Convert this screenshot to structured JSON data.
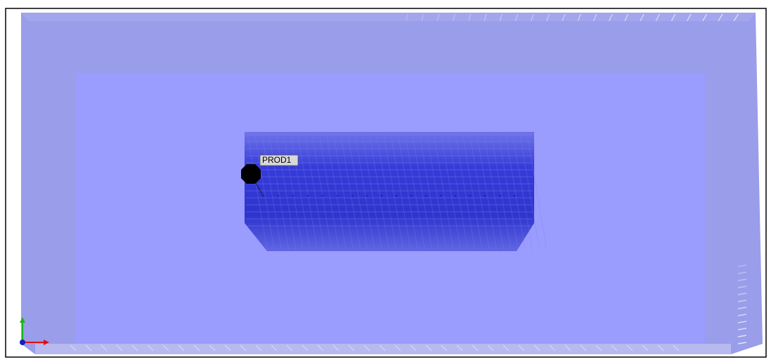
{
  "well": {
    "label": "PROD1"
  }
}
